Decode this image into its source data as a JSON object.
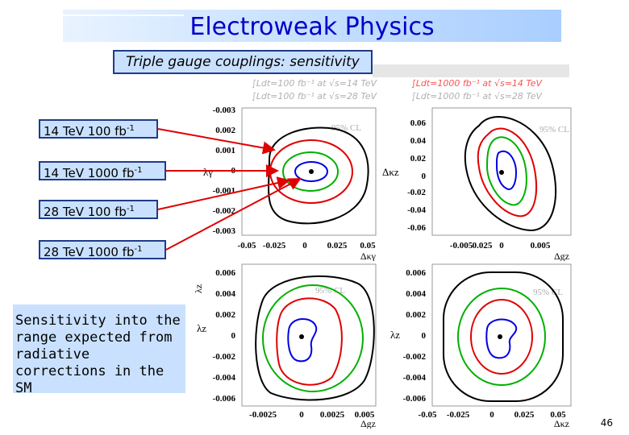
{
  "title": "Electroweak Physics",
  "subtitle": "Triple gauge couplings: sensitivity",
  "lumi_legend": [
    {
      "text": "∫Ldt=100 fb⁻¹ at √s=14 TeV",
      "color": "#c8c8c8"
    },
    {
      "text": "∫Ldt=100 fb⁻¹ at √s=28 TeV",
      "color": "#c8c8c8"
    },
    {
      "text": "∫Ldt=1000 fb⁻¹ at √s=14 TeV",
      "color": "#ff5050"
    },
    {
      "text": "∫Ldt=1000 fb⁻¹ at √s=28 TeV",
      "color": "#c8c8c8"
    }
  ],
  "boxes": [
    {
      "main": "14 TeV 100 fb",
      "exp": "-1"
    },
    {
      "main": "14 TeV 1000 fb",
      "exp": "-1"
    },
    {
      "main": "28 TeV 100 fb",
      "exp": "-1"
    },
    {
      "main": "28 TeV 1000 fb",
      "exp": "-1"
    }
  ],
  "note": "Sensitivity into the range expected from radiative corrections in the SM",
  "cl_label": "95% CL",
  "page_number": "46",
  "colors": {
    "contour_14_100": "#000000",
    "contour_28_100": "#e00000",
    "contour_14_1000": "#00b000",
    "contour_28_1000": "#0000e0",
    "arrow": "#e00000",
    "title": "#0000c8",
    "box_bg": "#c9e1ff",
    "box_border": "#1f3b8a"
  },
  "chart_data": [
    {
      "type": "scatter",
      "title": "",
      "xlabel": "Δκγ",
      "ylabel": "λγ",
      "xticks": [
        "-0.05",
        "-0.025",
        "0",
        "0.025",
        "0.05"
      ],
      "yticks": [
        "-0.003",
        "0.002",
        "0.001",
        "0",
        "-0.001",
        "-0.002",
        "-0.003"
      ],
      "xlim": [
        -0.06,
        0.06
      ],
      "ylim": [
        -0.003,
        0.003
      ],
      "legend": "95% CL"
    },
    {
      "type": "scatter",
      "title": "",
      "xlabel": "Δgz",
      "ylabel": "Δκz",
      "xticks": [
        "-0.005",
        "0.025",
        "0",
        "0.005"
      ],
      "yticks": [
        "0.06",
        "0.04",
        "0.02",
        "0",
        "-0.02",
        "-0.04",
        "-0.06"
      ],
      "xlim": [
        -0.008,
        0.008
      ],
      "ylim": [
        -0.07,
        0.07
      ],
      "legend": "95% CL"
    },
    {
      "type": "scatter",
      "title": "",
      "xlabel": "Δgz",
      "ylabel": "λz",
      "xticks": [
        "-0.0025",
        "0",
        "0.0025",
        "0.005"
      ],
      "yticks": [
        "0.006",
        "0.004",
        "0.002",
        "0",
        "-0.002",
        "-0.004",
        "-0.006"
      ],
      "xlim": [
        -0.0035,
        0.0075
      ],
      "ylim": [
        -0.007,
        0.007
      ],
      "legend": "95% CL"
    },
    {
      "type": "scatter",
      "title": "",
      "xlabel": "Δκz",
      "ylabel": "λz",
      "xticks": [
        "-0.05",
        "-0.025",
        "0",
        "0.025",
        "0.05"
      ],
      "yticks": [
        "0.006",
        "0.004",
        "0.002",
        "0",
        "-0.002",
        "-0.004",
        "-0.006"
      ],
      "xlim": [
        -0.06,
        0.06
      ],
      "ylim": [
        -0.007,
        0.007
      ],
      "legend": "95% CL"
    }
  ]
}
